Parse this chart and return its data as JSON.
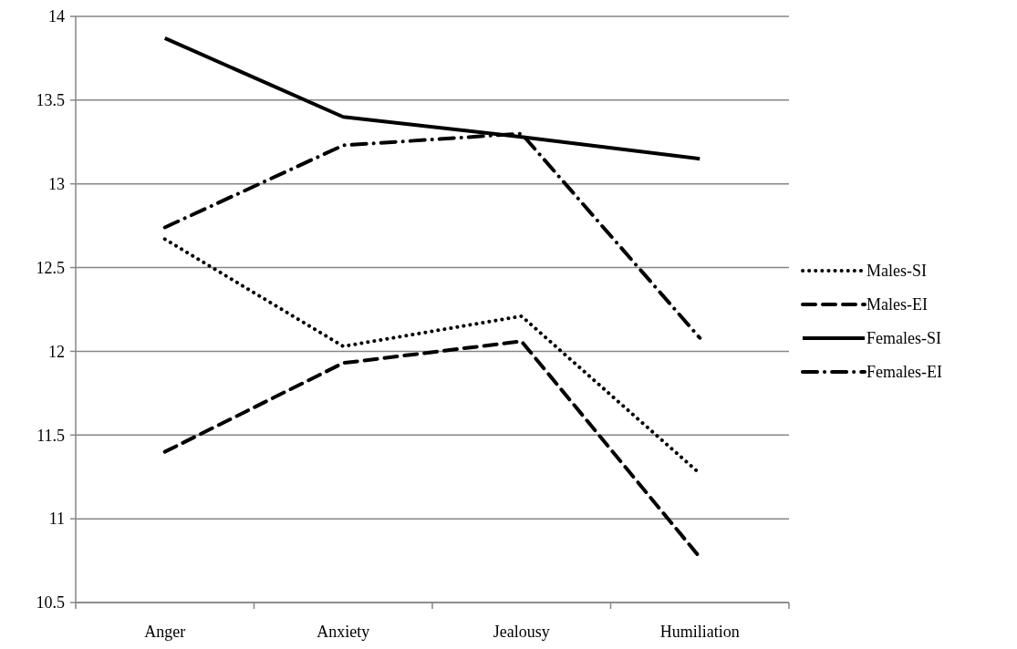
{
  "chart_data": {
    "type": "line",
    "categories": [
      "Anger",
      "Anxiety",
      "Jealousy",
      "Humiliation"
    ],
    "series": [
      {
        "name": "Males-SI",
        "color": "#000000",
        "line_style": "dotted",
        "values": [
          12.67,
          12.03,
          12.21,
          11.27
        ]
      },
      {
        "name": "Males-EI",
        "color": "#000000",
        "line_style": "dashed",
        "values": [
          11.4,
          11.93,
          12.06,
          10.77
        ]
      },
      {
        "name": "Females-SI",
        "color": "#000000",
        "line_style": "solid",
        "values": [
          13.87,
          13.4,
          13.28,
          13.15
        ]
      },
      {
        "name": "Females-EI",
        "color": "#000000",
        "line_style": "dashdot",
        "values": [
          12.74,
          13.23,
          13.3,
          12.08
        ]
      }
    ],
    "ylim": [
      10.5,
      14
    ],
    "yticks": [
      10.5,
      11,
      11.5,
      12,
      12.5,
      13,
      13.5,
      14
    ],
    "grid": "y",
    "legend": "right",
    "marker": "none"
  }
}
